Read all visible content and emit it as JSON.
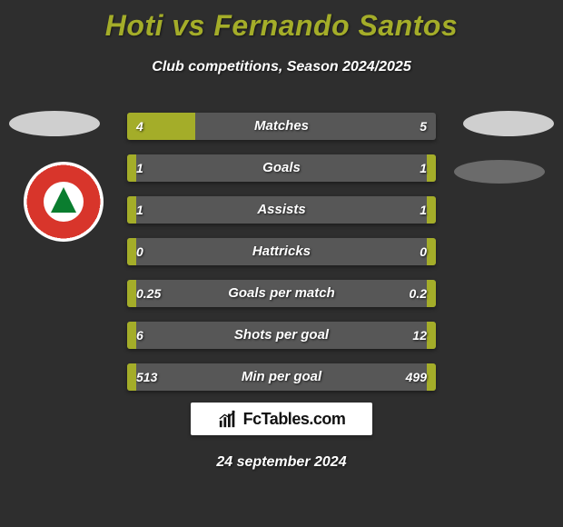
{
  "header": {
    "title": "Hoti vs Fernando Santos",
    "subtitle": "Club competitions, Season 2024/2025"
  },
  "colors": {
    "background": "#2e2e2e",
    "accent": "#a4ad29",
    "bar_bg": "#575757",
    "text": "#ffffff",
    "club_red": "#d8352b",
    "club_green": "#0a7d2f"
  },
  "rows": [
    {
      "label": "Matches",
      "left": "4",
      "right": "5",
      "left_pct": 22,
      "right_pct": 0
    },
    {
      "label": "Goals",
      "left": "1",
      "right": "1",
      "left_pct": 3,
      "right_pct": 3
    },
    {
      "label": "Assists",
      "left": "1",
      "right": "1",
      "left_pct": 3,
      "right_pct": 3
    },
    {
      "label": "Hattricks",
      "left": "0",
      "right": "0",
      "left_pct": 3,
      "right_pct": 3
    },
    {
      "label": "Goals per match",
      "left": "0.25",
      "right": "0.2",
      "left_pct": 3,
      "right_pct": 3
    },
    {
      "label": "Shots per goal",
      "left": "6",
      "right": "12",
      "left_pct": 3,
      "right_pct": 3
    },
    {
      "label": "Min per goal",
      "left": "513",
      "right": "499",
      "left_pct": 3,
      "right_pct": 3
    }
  ],
  "footer": {
    "brand": "FcTables.com",
    "date": "24 september 2024"
  }
}
